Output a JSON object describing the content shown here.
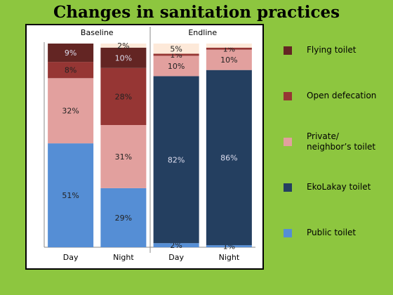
{
  "chart_data": {
    "type": "stacked-bar",
    "title": "Changes in sanitation practices",
    "groups": [
      "Baseline",
      "Endline"
    ],
    "categories": [
      "Day",
      "Night",
      "Day",
      "Night"
    ],
    "ylim": [
      0,
      100
    ],
    "series": [
      {
        "name": "Public toilet",
        "color": "#558ed5",
        "values": [
          51,
          29,
          2,
          1
        ],
        "value_labels": [
          "51%",
          "29%",
          "2%",
          "1%"
        ]
      },
      {
        "name": "EkoLakay toilet",
        "color": "#243f60",
        "values": [
          null,
          null,
          82,
          86
        ],
        "value_labels": [
          null,
          null,
          "82%",
          "86%"
        ]
      },
      {
        "name": "Private/\nneighbor’s toilet",
        "color": "#e2a09e",
        "values": [
          32,
          31,
          10,
          10
        ],
        "value_labels": [
          "32%",
          "31%",
          "10%",
          "10%"
        ]
      },
      {
        "name": "Open defecation",
        "color": "#963634",
        "values": [
          8,
          28,
          1,
          1
        ],
        "value_labels": [
          "8%",
          "28%",
          "1%",
          "1%"
        ]
      },
      {
        "name": "Flying toilet",
        "color": "#632523",
        "values": [
          9,
          10,
          null,
          null
        ],
        "value_labels": [
          "9%",
          "10%",
          null,
          null
        ]
      },
      {
        "color": "#fde9d9",
        "values": [
          null,
          2,
          5,
          2
        ],
        "value_labels": [
          null,
          "2%",
          "5%",
          null
        ]
      }
    ]
  }
}
